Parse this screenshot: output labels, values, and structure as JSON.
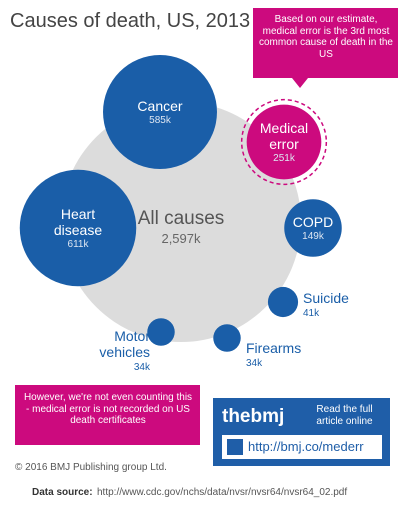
{
  "chart_data": {
    "type": "bubble",
    "title": "Causes of death, US, 2013",
    "total": {
      "name": "All causes",
      "value": 2597000,
      "value_label": "2,597k",
      "color": "#dcdcdc"
    },
    "categories": [
      "Cancer",
      "Medical error",
      "Heart disease",
      "COPD",
      "Suicide",
      "Motor vehicles",
      "Firearms"
    ],
    "values": [
      585000,
      251000,
      611000,
      149000,
      41000,
      34000,
      34000
    ],
    "value_labels": [
      "585k",
      "251k",
      "611k",
      "149k",
      "41k",
      "34k",
      "34k"
    ],
    "colors": [
      "#1a5ea8",
      "#cc0a7e",
      "#1a5ea8",
      "#1a5ea8",
      "#1a5ea8",
      "#1a5ea8",
      "#1a5ea8"
    ],
    "annotations": {
      "callout": "Based on our estimate, medical error is the 3rd most common cause of death in the US",
      "note": "However, we're not even counting this - medical error is not recorded on US death certificates",
      "brand": "thebmj",
      "read": "Read the full article online",
      "link": "http://bmj.co/mederr",
      "copyright": "© 2016 BMJ Publishing group Ltd.",
      "source_label": "Data source:",
      "source": "http://www.cdc.gov/nchs/data/nvsr/nvsr64/nvsr64_02.pdf"
    }
  }
}
